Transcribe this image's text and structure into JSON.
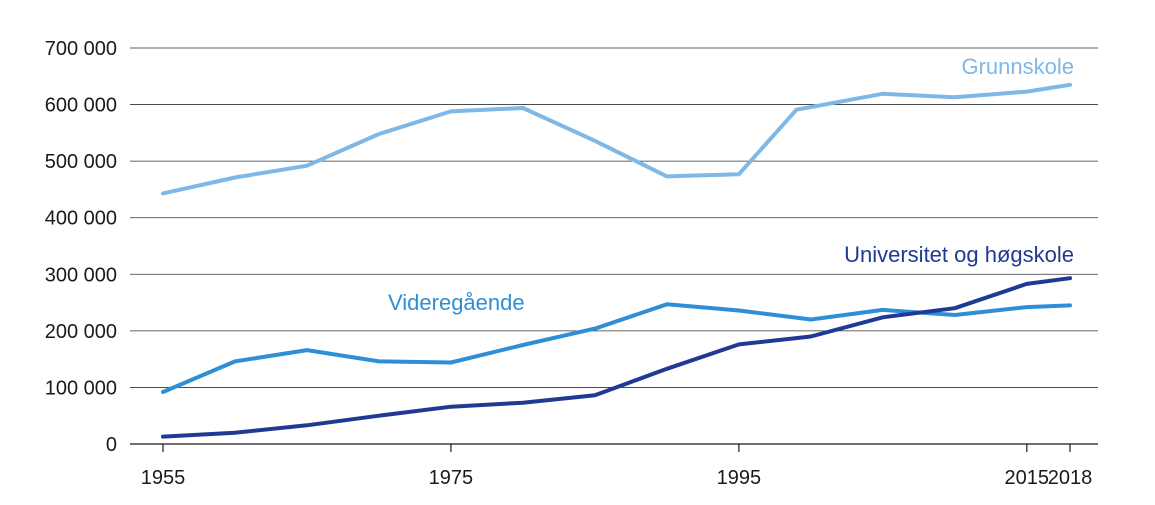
{
  "chart_data": {
    "type": "line",
    "title": "",
    "xlabel": "",
    "ylabel": "",
    "xlim": [
      1955,
      2018
    ],
    "ylim": [
      0,
      700000
    ],
    "grid": true,
    "legend": "inline labels",
    "x_ticks": [
      {
        "value": 1955,
        "label": "1955"
      },
      {
        "value": 1975,
        "label": "1975"
      },
      {
        "value": 1995,
        "label": "1995"
      },
      {
        "value": 2015,
        "label": "2015"
      },
      {
        "value": 2018,
        "label": "2018"
      }
    ],
    "y_ticks": [
      {
        "value": 0,
        "label": "0"
      },
      {
        "value": 100000,
        "label": "100 000"
      },
      {
        "value": 200000,
        "label": "200 000"
      },
      {
        "value": 300000,
        "label": "300 000"
      },
      {
        "value": 400000,
        "label": "400 000"
      },
      {
        "value": 500000,
        "label": "500 000"
      },
      {
        "value": 600000,
        "label": "600 000"
      },
      {
        "value": 700000,
        "label": "700 000"
      }
    ],
    "series": [
      {
        "name": "Grunnskole",
        "color": "#7fb8e6",
        "points": [
          [
            1955,
            443000
          ],
          [
            1960,
            471000
          ],
          [
            1965,
            492000
          ],
          [
            1970,
            548000
          ],
          [
            1975,
            588000
          ],
          [
            1980,
            594000
          ],
          [
            1985,
            536000
          ],
          [
            1990,
            473000
          ],
          [
            1995,
            477000
          ],
          [
            1999,
            591000
          ],
          [
            2005,
            619000
          ],
          [
            2010,
            613000
          ],
          [
            2015,
            623000
          ],
          [
            2018,
            635000
          ]
        ]
      },
      {
        "name": "Videregående",
        "color": "#2e8fd6",
        "points": [
          [
            1955,
            92000
          ],
          [
            1960,
            146000
          ],
          [
            1965,
            166000
          ],
          [
            1970,
            146000
          ],
          [
            1975,
            144000
          ],
          [
            1980,
            175000
          ],
          [
            1985,
            204000
          ],
          [
            1990,
            247000
          ],
          [
            1995,
            236000
          ],
          [
            2000,
            220000
          ],
          [
            2005,
            237000
          ],
          [
            2010,
            228000
          ],
          [
            2015,
            242000
          ],
          [
            2018,
            245000
          ]
        ]
      },
      {
        "name": "Universitet og høgskole",
        "color": "#1f3a93",
        "points": [
          [
            1955,
            13000
          ],
          [
            1960,
            20000
          ],
          [
            1965,
            33000
          ],
          [
            1970,
            50000
          ],
          [
            1975,
            66000
          ],
          [
            1980,
            73000
          ],
          [
            1985,
            86000
          ],
          [
            1990,
            133000
          ],
          [
            1995,
            176000
          ],
          [
            2000,
            190000
          ],
          [
            2005,
            224000
          ],
          [
            2010,
            240000
          ],
          [
            2015,
            283000
          ],
          [
            2018,
            293000
          ]
        ]
      }
    ]
  }
}
